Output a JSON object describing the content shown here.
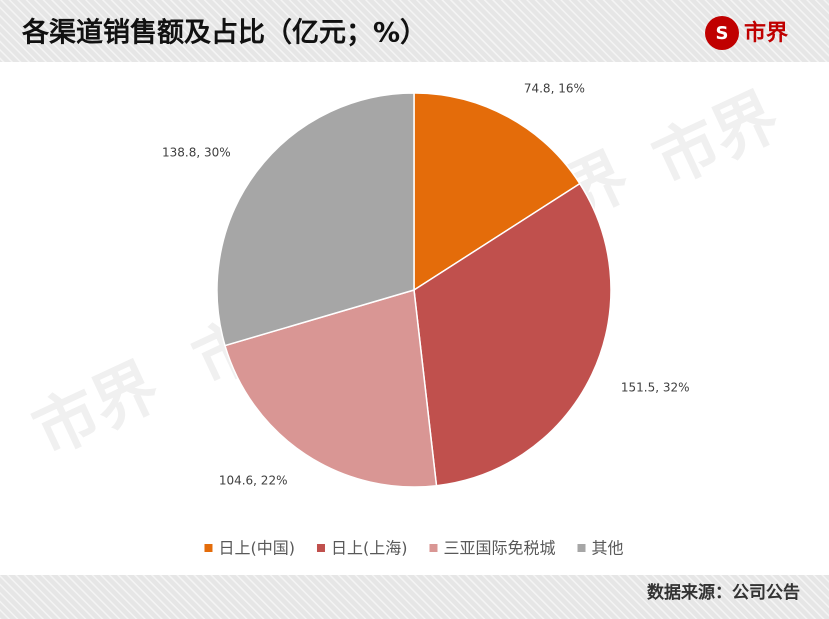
{
  "chart_data": {
    "type": "pie",
    "title": "各渠道销售额及占比（亿元；%）",
    "logo": "市界",
    "watermark": "市界",
    "categories": [
      "日上(中国)",
      "日上(上海)",
      "三亚国际免税城",
      "其他"
    ],
    "values": [
      74.8,
      151.5,
      104.6,
      138.8
    ],
    "value_labels": [
      "74.8, 16%",
      "151.5, 32%",
      "104.6, 22%",
      "138.8, 30%"
    ],
    "colors": [
      "#E46C0A",
      "#C0504D",
      "#D99694",
      "#A6A6A6"
    ],
    "legend": "bottom",
    "source": "数据来源：公司公告"
  }
}
